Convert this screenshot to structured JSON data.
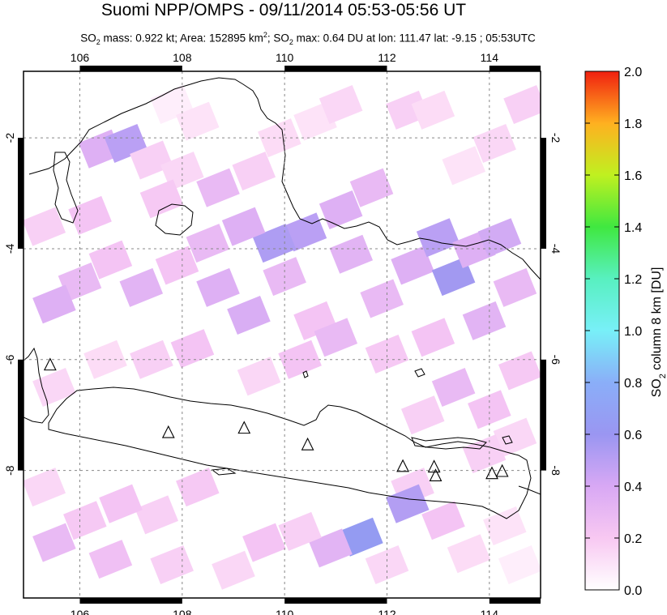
{
  "chart_data": {
    "type": "heatmap",
    "title": "Suomi NPP/OMPS - 09/11/2014 05:53-05:56 UT",
    "subtitle": {
      "prefix": "SO",
      "prefix_sub": "2",
      "mass": " mass: 0.922 kt; Area: 152895 km",
      "area_sup": "2",
      "mid": "; SO",
      "mid_sub": "2",
      "rest": " max: 0.64 DU at lon: 111.47 lat: -9.15 ; 05:53UTC"
    },
    "x_ticks": [
      "106",
      "108",
      "110",
      "112",
      "114"
    ],
    "x_tick_values": [
      106,
      108,
      110,
      112,
      114
    ],
    "y_ticks": [
      "-2",
      "-4",
      "-6",
      "-8"
    ],
    "y_tick_values": [
      -2,
      -4,
      -6,
      -8
    ],
    "xlim": [
      104.9,
      115
    ],
    "ylim": [
      -10.3,
      -0.8
    ],
    "colorbar": {
      "label_main": "SO",
      "label_sub": "2",
      "label_rest": " column 8 km [DU]",
      "ticks": [
        "0.0",
        "0.2",
        "0.4",
        "0.6",
        "0.8",
        "1.0",
        "1.2",
        "1.4",
        "1.6",
        "1.8",
        "2.0"
      ],
      "range": [
        0,
        2.0
      ]
    },
    "volcanoes": [
      {
        "lon": 105.42,
        "lat": -6.1
      },
      {
        "lon": 107.73,
        "lat": -7.32
      },
      {
        "lon": 109.21,
        "lat": -7.24
      },
      {
        "lon": 110.45,
        "lat": -7.54
      },
      {
        "lon": 112.31,
        "lat": -7.93
      },
      {
        "lon": 112.92,
        "lat": -7.94
      },
      {
        "lon": 112.95,
        "lat": -8.1
      },
      {
        "lon": 114.05,
        "lat": -8.06
      },
      {
        "lon": 114.25,
        "lat": -8.02
      }
    ],
    "so2_pixels": [
      {
        "lon": 107.8,
        "lat": -1.4,
        "v": 0.05
      },
      {
        "lon": 108.3,
        "lat": -1.7,
        "v": 0.08
      },
      {
        "lon": 106.4,
        "lat": -2.2,
        "v": 0.3
      },
      {
        "lon": 106.9,
        "lat": -2.1,
        "v": 0.45
      },
      {
        "lon": 107.4,
        "lat": -2.4,
        "v": 0.15
      },
      {
        "lon": 108.0,
        "lat": -2.6,
        "v": 0.12
      },
      {
        "lon": 108.7,
        "lat": -2.9,
        "v": 0.25
      },
      {
        "lon": 109.4,
        "lat": -2.6,
        "v": 0.15
      },
      {
        "lon": 109.9,
        "lat": -2.0,
        "v": 0.1
      },
      {
        "lon": 110.6,
        "lat": -1.7,
        "v": 0.08
      },
      {
        "lon": 111.1,
        "lat": -1.4,
        "v": 0.12
      },
      {
        "lon": 112.4,
        "lat": -1.5,
        "v": 0.15
      },
      {
        "lon": 112.9,
        "lat": -1.5,
        "v": 0.1
      },
      {
        "lon": 113.5,
        "lat": -2.5,
        "v": 0.08
      },
      {
        "lon": 114.1,
        "lat": -2.1,
        "v": 0.12
      },
      {
        "lon": 114.7,
        "lat": -1.4,
        "v": 0.15
      },
      {
        "lon": 111.7,
        "lat": -2.9,
        "v": 0.25
      },
      {
        "lon": 111.1,
        "lat": -3.3,
        "v": 0.3
      },
      {
        "lon": 110.4,
        "lat": -3.7,
        "v": 0.45
      },
      {
        "lon": 109.8,
        "lat": -3.9,
        "v": 0.5
      },
      {
        "lon": 109.2,
        "lat": -3.6,
        "v": 0.3
      },
      {
        "lon": 108.5,
        "lat": -3.9,
        "v": 0.25
      },
      {
        "lon": 107.9,
        "lat": -4.3,
        "v": 0.2
      },
      {
        "lon": 107.2,
        "lat": -4.7,
        "v": 0.28
      },
      {
        "lon": 106.6,
        "lat": -4.2,
        "v": 0.2
      },
      {
        "lon": 106.0,
        "lat": -4.6,
        "v": 0.25
      },
      {
        "lon": 105.5,
        "lat": -5.0,
        "v": 0.3
      },
      {
        "lon": 105.3,
        "lat": -3.6,
        "v": 0.15
      },
      {
        "lon": 106.2,
        "lat": -3.4,
        "v": 0.2
      },
      {
        "lon": 107.6,
        "lat": -3.1,
        "v": 0.18
      },
      {
        "lon": 108.7,
        "lat": -4.7,
        "v": 0.3
      },
      {
        "lon": 109.3,
        "lat": -5.2,
        "v": 0.32
      },
      {
        "lon": 110.0,
        "lat": -4.5,
        "v": 0.25
      },
      {
        "lon": 110.6,
        "lat": -5.3,
        "v": 0.2
      },
      {
        "lon": 111.3,
        "lat": -4.1,
        "v": 0.28
      },
      {
        "lon": 111.9,
        "lat": -4.9,
        "v": 0.25
      },
      {
        "lon": 112.5,
        "lat": -4.3,
        "v": 0.3
      },
      {
        "lon": 113.0,
        "lat": -3.8,
        "v": 0.45
      },
      {
        "lon": 113.3,
        "lat": -4.5,
        "v": 0.55
      },
      {
        "lon": 113.7,
        "lat": -4.0,
        "v": 0.3
      },
      {
        "lon": 114.2,
        "lat": -3.8,
        "v": 0.35
      },
      {
        "lon": 114.5,
        "lat": -4.7,
        "v": 0.25
      },
      {
        "lon": 113.9,
        "lat": -5.3,
        "v": 0.28
      },
      {
        "lon": 112.9,
        "lat": -5.6,
        "v": 0.2
      },
      {
        "lon": 112.0,
        "lat": -5.9,
        "v": 0.18
      },
      {
        "lon": 111.0,
        "lat": -5.6,
        "v": 0.25
      },
      {
        "lon": 110.3,
        "lat": -6.0,
        "v": 0.2
      },
      {
        "lon": 109.5,
        "lat": -6.3,
        "v": 0.12
      },
      {
        "lon": 108.2,
        "lat": -5.8,
        "v": 0.2
      },
      {
        "lon": 107.4,
        "lat": -6.0,
        "v": 0.15
      },
      {
        "lon": 106.5,
        "lat": -6.0,
        "v": 0.1
      },
      {
        "lon": 105.5,
        "lat": -6.5,
        "v": 0.12
      },
      {
        "lon": 113.3,
        "lat": -6.5,
        "v": 0.25
      },
      {
        "lon": 114.0,
        "lat": -6.9,
        "v": 0.2
      },
      {
        "lon": 114.6,
        "lat": -6.2,
        "v": 0.18
      },
      {
        "lon": 112.7,
        "lat": -7.0,
        "v": 0.15
      },
      {
        "lon": 114.5,
        "lat": -7.4,
        "v": 0.12
      },
      {
        "lon": 113.9,
        "lat": -7.7,
        "v": 0.15
      },
      {
        "lon": 112.5,
        "lat": -8.3,
        "v": 0.15
      },
      {
        "lon": 112.4,
        "lat": -8.6,
        "v": 0.48
      },
      {
        "lon": 113.1,
        "lat": -8.9,
        "v": 0.2
      },
      {
        "lon": 111.5,
        "lat": -9.2,
        "v": 0.64
      },
      {
        "lon": 110.9,
        "lat": -9.4,
        "v": 0.28
      },
      {
        "lon": 110.3,
        "lat": -9.1,
        "v": 0.15
      },
      {
        "lon": 109.6,
        "lat": -9.3,
        "v": 0.2
      },
      {
        "lon": 109.0,
        "lat": -9.8,
        "v": 0.12
      },
      {
        "lon": 108.3,
        "lat": -8.3,
        "v": 0.18
      },
      {
        "lon": 107.5,
        "lat": -8.8,
        "v": 0.15
      },
      {
        "lon": 106.8,
        "lat": -8.6,
        "v": 0.2
      },
      {
        "lon": 106.1,
        "lat": -8.9,
        "v": 0.18
      },
      {
        "lon": 105.5,
        "lat": -9.3,
        "v": 0.25
      },
      {
        "lon": 106.6,
        "lat": -9.6,
        "v": 0.22
      },
      {
        "lon": 107.8,
        "lat": -9.7,
        "v": 0.15
      },
      {
        "lon": 105.3,
        "lat": -8.3,
        "v": 0.12
      },
      {
        "lon": 112.0,
        "lat": -9.7,
        "v": 0.12
      },
      {
        "lon": 113.6,
        "lat": -9.5,
        "v": 0.1
      },
      {
        "lon": 114.3,
        "lat": -9.0,
        "v": 0.08
      },
      {
        "lon": 114.6,
        "lat": -9.7,
        "v": 0.05
      }
    ]
  }
}
